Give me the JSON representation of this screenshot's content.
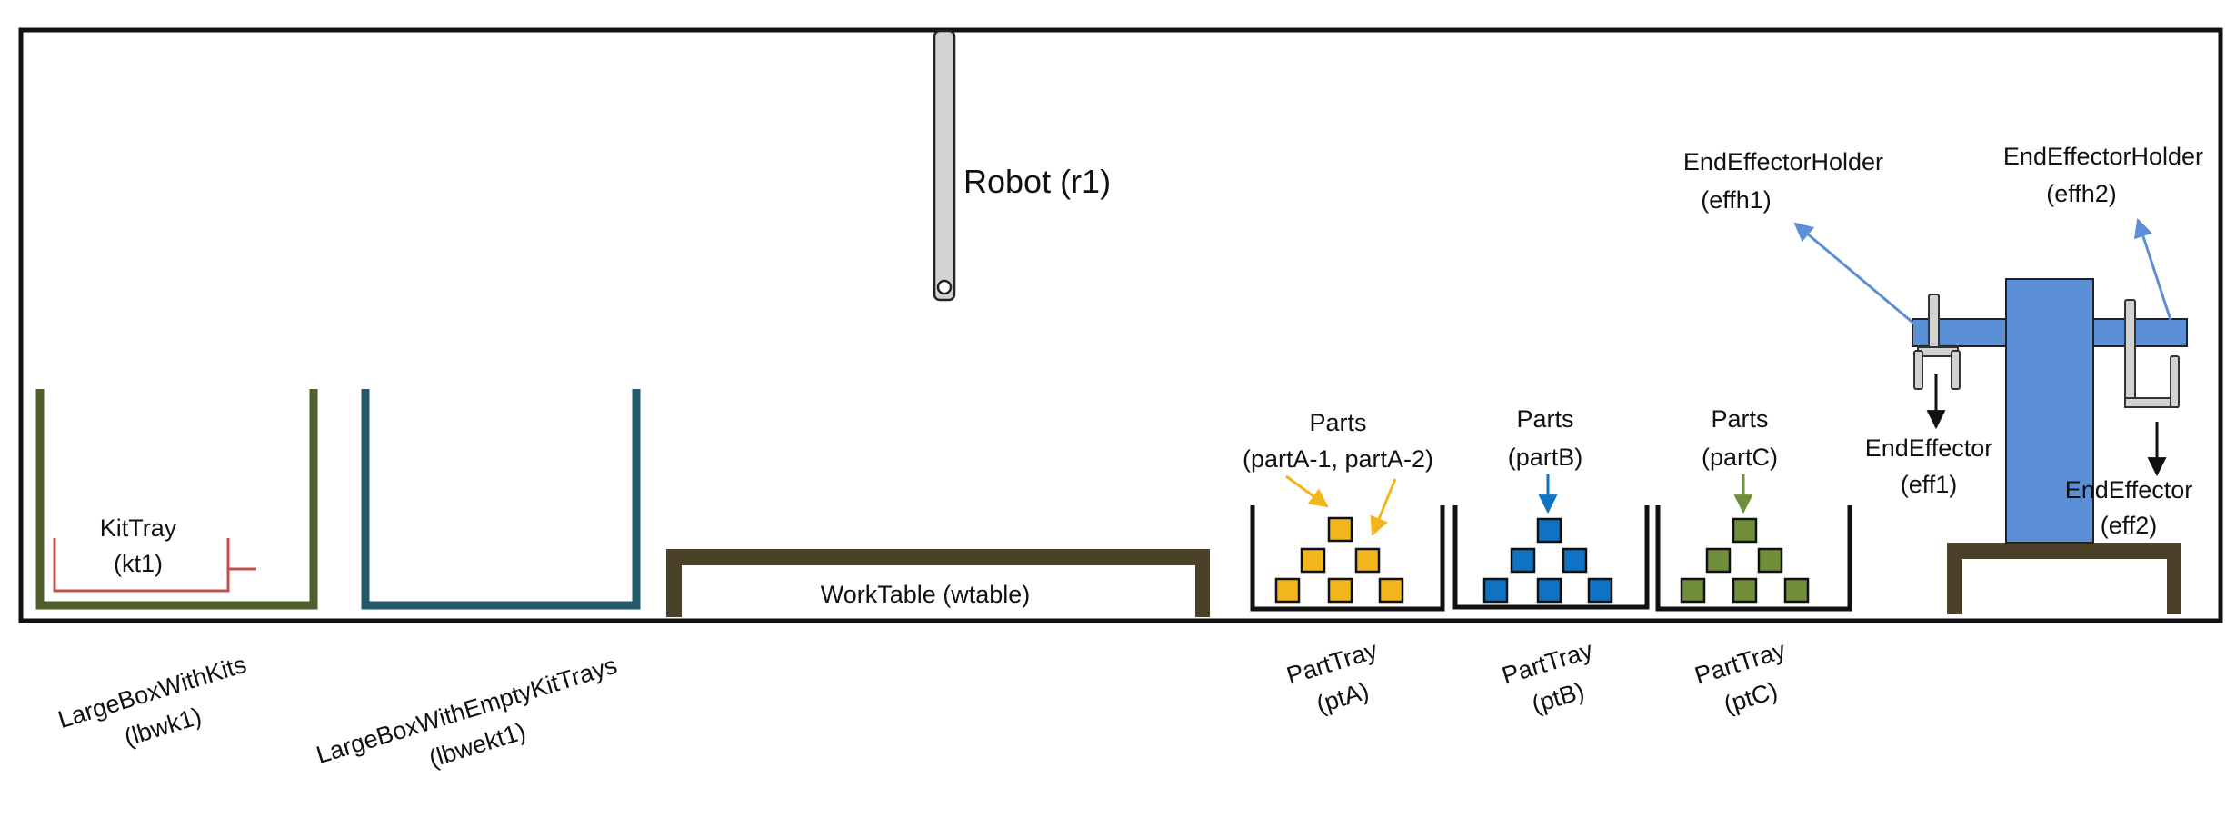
{
  "labels": {
    "robot": "Robot (r1)",
    "effh1_name": "EndEffectorHolder",
    "effh1_id": "(effh1)",
    "effh2_name": "EndEffectorHolder",
    "effh2_id": "(effh2)",
    "eff1_name": "EndEffector",
    "eff1_id": "(eff1)",
    "eff2_name": "EndEffector",
    "eff2_id": "(eff2)",
    "partsA_name": "Parts",
    "partsA_id": "(partA-1, partA-2)",
    "partsB_name": "Parts",
    "partsB_id": "(partB)",
    "partsC_name": "Parts",
    "partsC_id": "(partC)",
    "kittray_name": "KitTray",
    "kittray_id": "(kt1)",
    "worktable": "WorkTable (wtable)",
    "lbwk_name": "LargeBoxWithKits",
    "lbwk_id": "(lbwk1)",
    "lbwekt_name": "LargeBoxWithEmptyKitTrays",
    "lbwekt_id": "(lbwekt1)",
    "ptA_name": "PartTray",
    "ptA_id": "(ptA)",
    "ptB_name": "PartTray",
    "ptB_id": "(ptB)",
    "ptC_name": "PartTray",
    "ptC_id": "(ptC)"
  },
  "colors": {
    "frame": "#111111",
    "robot_arm": "#d2d2d2",
    "box_with_kits": "#4f5e2a",
    "box_empty_trays": "#24596b",
    "kit_tray": "#c0504d",
    "table": "#4a4128",
    "part_a": "#f2b51b",
    "part_b": "#0f72c2",
    "part_c": "#6f8f3a",
    "holder": "#5b8fd6",
    "holder_arrow": "#5b8fd6"
  }
}
